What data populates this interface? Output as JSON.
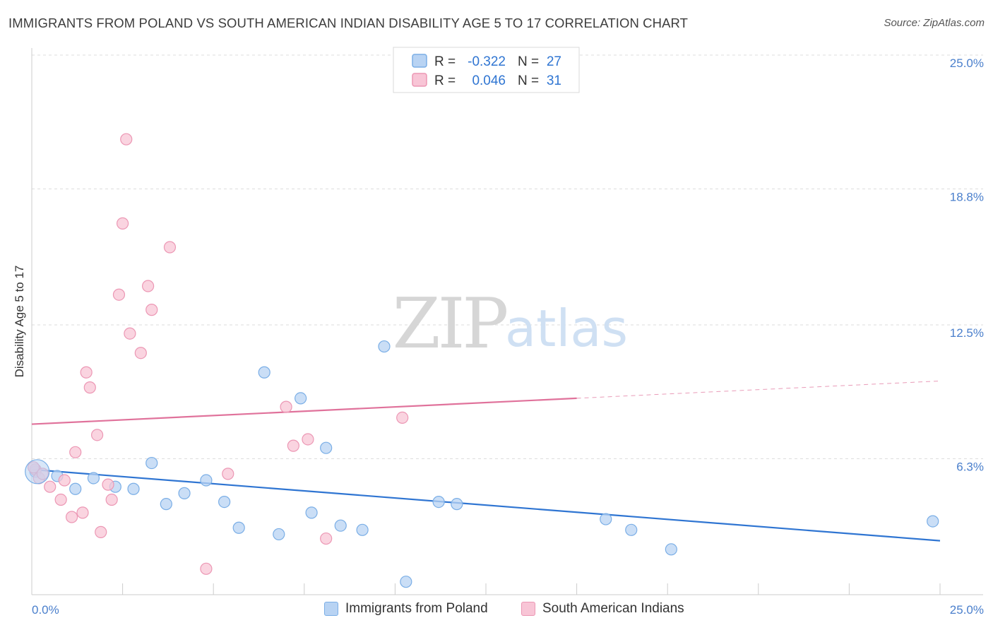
{
  "title": "IMMIGRANTS FROM POLAND VS SOUTH AMERICAN INDIAN DISABILITY AGE 5 TO 17 CORRELATION CHART",
  "source": "Source: ZipAtlas.com",
  "watermark": {
    "zip": "ZIP",
    "atlas": "atlas"
  },
  "colors": {
    "blue_fill": "#b8d3f3",
    "blue_stroke": "#7aaee6",
    "blue_line": "#2f75d2",
    "pink_fill": "#f8c5d6",
    "pink_stroke": "#ec97b4",
    "pink_line": "#e0729b",
    "tick_label": "#4a7fcc",
    "grid": "#dddddd"
  },
  "chart_data": {
    "type": "scatter",
    "title": "IMMIGRANTS FROM POLAND VS SOUTH AMERICAN INDIAN DISABILITY AGE 5 TO 17 CORRELATION CHART",
    "xlabel": "",
    "ylabel": "Disability Age 5 to 17",
    "xlim": [
      0,
      25
    ],
    "ylim": [
      0,
      25
    ],
    "x_tick_labels": {
      "min": "0.0%",
      "max": "25.0%"
    },
    "y_ticks": [
      {
        "value": 6.3,
        "label": "6.3%"
      },
      {
        "value": 12.5,
        "label": "12.5%"
      },
      {
        "value": 18.8,
        "label": "18.8%"
      },
      {
        "value": 25.0,
        "label": "25.0%"
      }
    ],
    "legend_stats": [
      {
        "r_label": "R =",
        "r_value": "-0.322",
        "n_label": "N =",
        "n_value": "27"
      },
      {
        "r_label": "R =",
        "r_value": "0.046",
        "n_label": "N =",
        "n_value": "31"
      }
    ],
    "series": [
      {
        "name": "Immigrants from Poland",
        "color": "blue",
        "trend": {
          "x0": 0,
          "y0": 5.8,
          "x1": 25,
          "y1": 2.5,
          "solid_until": 25
        },
        "points": [
          [
            0.1,
            5.7
          ],
          [
            0.7,
            5.5
          ],
          [
            1.2,
            4.9
          ],
          [
            1.7,
            5.4
          ],
          [
            2.3,
            5.0
          ],
          [
            2.8,
            4.9
          ],
          [
            3.3,
            6.1
          ],
          [
            3.7,
            4.2
          ],
          [
            4.2,
            4.7
          ],
          [
            4.8,
            5.3
          ],
          [
            5.3,
            4.3
          ],
          [
            5.7,
            3.1
          ],
          [
            6.4,
            10.3
          ],
          [
            6.8,
            2.8
          ],
          [
            7.4,
            9.1
          ],
          [
            7.7,
            3.8
          ],
          [
            8.1,
            6.8
          ],
          [
            8.5,
            3.2
          ],
          [
            9.1,
            3.0
          ],
          [
            9.7,
            11.5
          ],
          [
            10.3,
            0.6
          ],
          [
            11.2,
            4.3
          ],
          [
            11.7,
            4.2
          ],
          [
            15.8,
            3.5
          ],
          [
            16.5,
            3.0
          ],
          [
            17.6,
            2.1
          ],
          [
            24.8,
            3.4
          ]
        ]
      },
      {
        "name": "South American Indians",
        "color": "pink",
        "trend": {
          "x0": 0,
          "y0": 7.9,
          "x1": 25,
          "y1": 9.9,
          "solid_until": 15
        },
        "points": [
          [
            0.1,
            5.8
          ],
          [
            0.2,
            5.4
          ],
          [
            0.5,
            5.0
          ],
          [
            0.8,
            4.4
          ],
          [
            0.9,
            5.3
          ],
          [
            1.1,
            3.6
          ],
          [
            1.2,
            6.6
          ],
          [
            1.4,
            3.8
          ],
          [
            1.5,
            10.3
          ],
          [
            1.6,
            9.6
          ],
          [
            1.8,
            7.4
          ],
          [
            1.9,
            2.9
          ],
          [
            2.1,
            5.1
          ],
          [
            2.2,
            4.4
          ],
          [
            2.4,
            13.9
          ],
          [
            2.5,
            17.2
          ],
          [
            2.6,
            21.1
          ],
          [
            2.7,
            12.1
          ],
          [
            3.0,
            11.2
          ],
          [
            3.2,
            14.3
          ],
          [
            3.3,
            13.2
          ],
          [
            3.8,
            16.1
          ],
          [
            4.8,
            1.2
          ],
          [
            5.4,
            5.6
          ],
          [
            7.0,
            8.7
          ],
          [
            7.2,
            6.9
          ],
          [
            7.6,
            7.2
          ],
          [
            8.1,
            2.6
          ],
          [
            10.2,
            8.2
          ],
          [
            0.05,
            5.9
          ],
          [
            0.3,
            5.6
          ]
        ]
      }
    ]
  }
}
